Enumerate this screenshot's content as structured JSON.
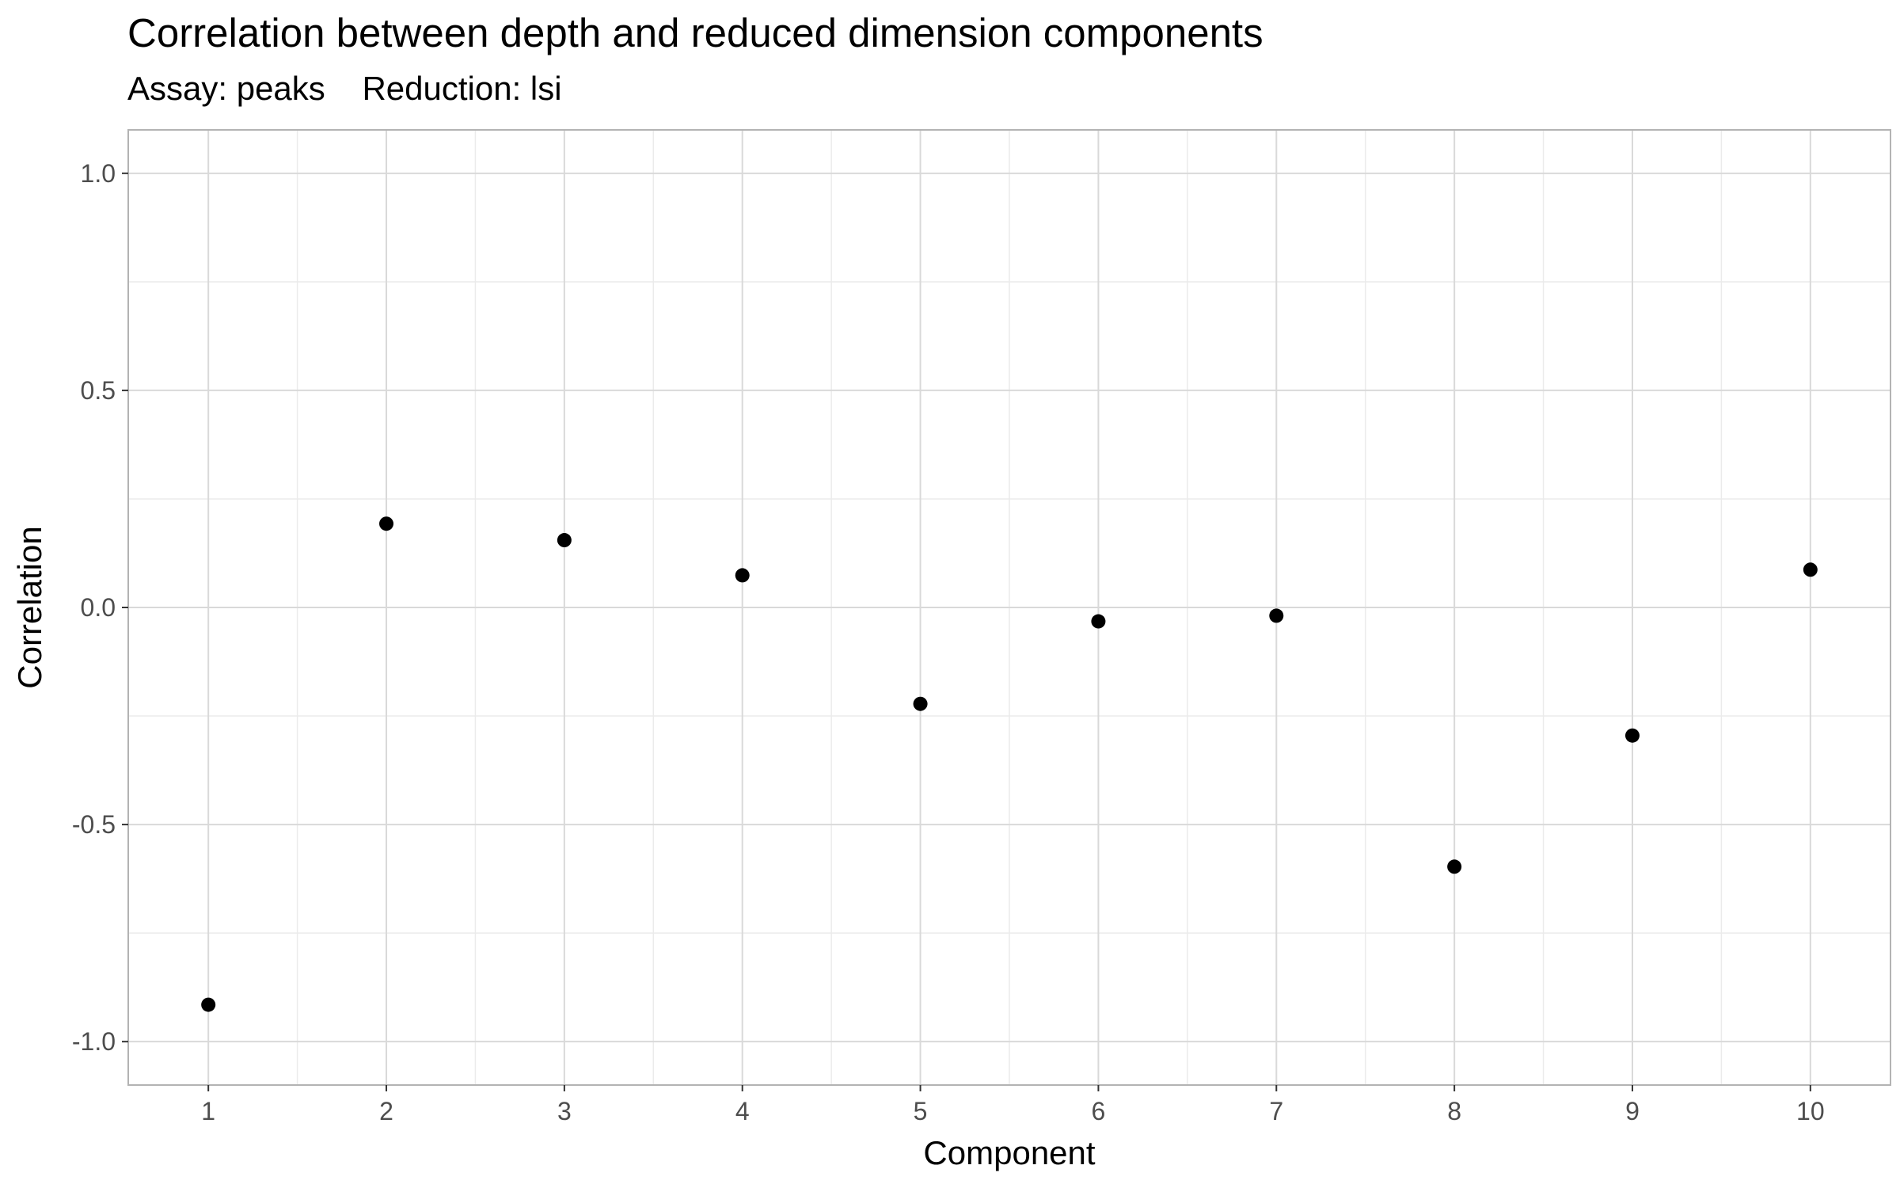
{
  "chart_data": {
    "type": "scatter",
    "title": "Correlation between depth and reduced dimension components",
    "subtitle": "Assay: peaks    Reduction: lsi",
    "xlabel": "Component",
    "ylabel": "Correlation",
    "x": [
      1,
      2,
      3,
      4,
      5,
      6,
      7,
      8,
      9,
      10
    ],
    "y": [
      -0.915,
      0.193,
      0.155,
      0.074,
      -0.222,
      -0.032,
      -0.019,
      -0.597,
      -0.295,
      0.087
    ],
    "xlim": [
      0.55,
      10.45
    ],
    "ylim": [
      -1.1,
      1.1
    ],
    "x_ticks": [
      1,
      2,
      3,
      4,
      5,
      6,
      7,
      8,
      9,
      10
    ],
    "x_tick_labels": [
      "1",
      "2",
      "3",
      "4",
      "5",
      "6",
      "7",
      "8",
      "9",
      "10"
    ],
    "y_ticks": [
      1.0,
      0.5,
      0.0,
      -0.5,
      -1.0
    ],
    "y_tick_labels": [
      "1.0",
      "0.5",
      "0.0",
      "-0.5",
      "-1.0"
    ],
    "grid": true,
    "legend": "none",
    "colors": {
      "point": "#000000",
      "grid_major": "#d9d9d9",
      "grid_minor": "#ebebeb",
      "panel_border": "#b3b3b3"
    }
  }
}
